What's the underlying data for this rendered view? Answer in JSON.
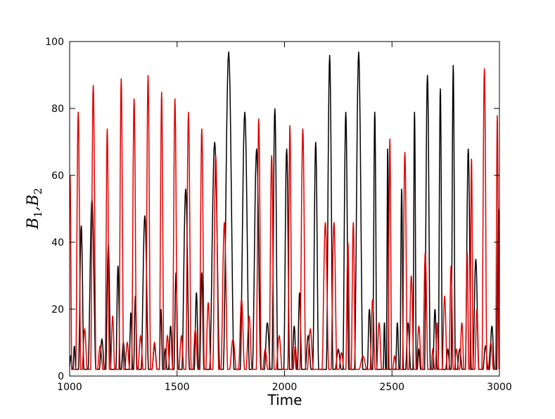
{
  "chart_data": {
    "type": "line",
    "xlabel": "Time",
    "ylabel": {
      "base": "B",
      "sub1": "1",
      "sub2": "2",
      "sep": ","
    },
    "xlim": [
      1000,
      3000
    ],
    "ylim": [
      0,
      100
    ],
    "xticks": [
      1000,
      1500,
      2000,
      2500,
      3000
    ],
    "yticks": [
      0,
      20,
      40,
      60,
      80,
      100
    ],
    "grid": false,
    "series": [
      {
        "color": "#000000",
        "peaks": [
          [
            1005,
            6
          ],
          [
            1022,
            9
          ],
          [
            1054,
            45
          ],
          [
            1104,
            53
          ],
          [
            1150,
            11
          ],
          [
            1180,
            39
          ],
          [
            1225,
            33
          ],
          [
            1250,
            10
          ],
          [
            1285,
            19
          ],
          [
            1306,
            24
          ],
          [
            1350,
            48
          ],
          [
            1395,
            9
          ],
          [
            1425,
            20
          ],
          [
            1445,
            8
          ],
          [
            1470,
            15
          ],
          [
            1495,
            31
          ],
          [
            1540,
            56
          ],
          [
            1590,
            25
          ],
          [
            1615,
            31
          ],
          [
            1675,
            70
          ],
          [
            1740,
            97
          ],
          [
            1815,
            79
          ],
          [
            1870,
            68
          ],
          [
            1920,
            16
          ],
          [
            1955,
            80
          ],
          [
            2010,
            68
          ],
          [
            2045,
            15
          ],
          [
            2070,
            25
          ],
          [
            2110,
            12
          ],
          [
            2145,
            70
          ],
          [
            2210,
            96
          ],
          [
            2250,
            8
          ],
          [
            2285,
            79
          ],
          [
            2345,
            97
          ],
          [
            2395,
            20
          ],
          [
            2420,
            79
          ],
          [
            2465,
            16
          ],
          [
            2480,
            68
          ],
          [
            2525,
            16
          ],
          [
            2545,
            56
          ],
          [
            2575,
            16
          ],
          [
            2605,
            79
          ],
          [
            2625,
            8
          ],
          [
            2665,
            90
          ],
          [
            2700,
            20
          ],
          [
            2725,
            86
          ],
          [
            2760,
            8
          ],
          [
            2785,
            93
          ],
          [
            2815,
            8
          ],
          [
            2855,
            68
          ],
          [
            2890,
            35
          ],
          [
            2935,
            9
          ],
          [
            2965,
            15
          ],
          [
            2995,
            50
          ]
        ]
      },
      {
        "color": "#e00000",
        "peaks": [
          [
            1002,
            60
          ],
          [
            1040,
            79
          ],
          [
            1070,
            14
          ],
          [
            1110,
            87
          ],
          [
            1142,
            9
          ],
          [
            1175,
            74
          ],
          [
            1200,
            18
          ],
          [
            1240,
            89
          ],
          [
            1268,
            10
          ],
          [
            1300,
            83
          ],
          [
            1330,
            12
          ],
          [
            1365,
            90
          ],
          [
            1395,
            10
          ],
          [
            1428,
            85
          ],
          [
            1455,
            12
          ],
          [
            1490,
            83
          ],
          [
            1520,
            12
          ],
          [
            1553,
            79
          ],
          [
            1585,
            14
          ],
          [
            1615,
            74
          ],
          [
            1645,
            22
          ],
          [
            1680,
            66
          ],
          [
            1720,
            46
          ],
          [
            1760,
            11
          ],
          [
            1800,
            23
          ],
          [
            1835,
            18
          ],
          [
            1880,
            77
          ],
          [
            1910,
            8
          ],
          [
            1940,
            66
          ],
          [
            1975,
            12
          ],
          [
            2025,
            75
          ],
          [
            2050,
            9
          ],
          [
            2085,
            74
          ],
          [
            2120,
            14
          ],
          [
            2190,
            46
          ],
          [
            2230,
            46
          ],
          [
            2265,
            7
          ],
          [
            2295,
            40
          ],
          [
            2320,
            46
          ],
          [
            2365,
            6
          ],
          [
            2410,
            23
          ],
          [
            2440,
            16
          ],
          [
            2490,
            71
          ],
          [
            2512,
            6
          ],
          [
            2560,
            67
          ],
          [
            2590,
            30
          ],
          [
            2625,
            15
          ],
          [
            2655,
            37
          ],
          [
            2690,
            8
          ],
          [
            2710,
            16
          ],
          [
            2745,
            24
          ],
          [
            2775,
            33
          ],
          [
            2800,
            8
          ],
          [
            2825,
            16
          ],
          [
            2850,
            37
          ],
          [
            2870,
            65
          ],
          [
            2895,
            20
          ],
          [
            2930,
            92
          ],
          [
            2960,
            10
          ],
          [
            2990,
            78
          ]
        ]
      }
    ]
  }
}
